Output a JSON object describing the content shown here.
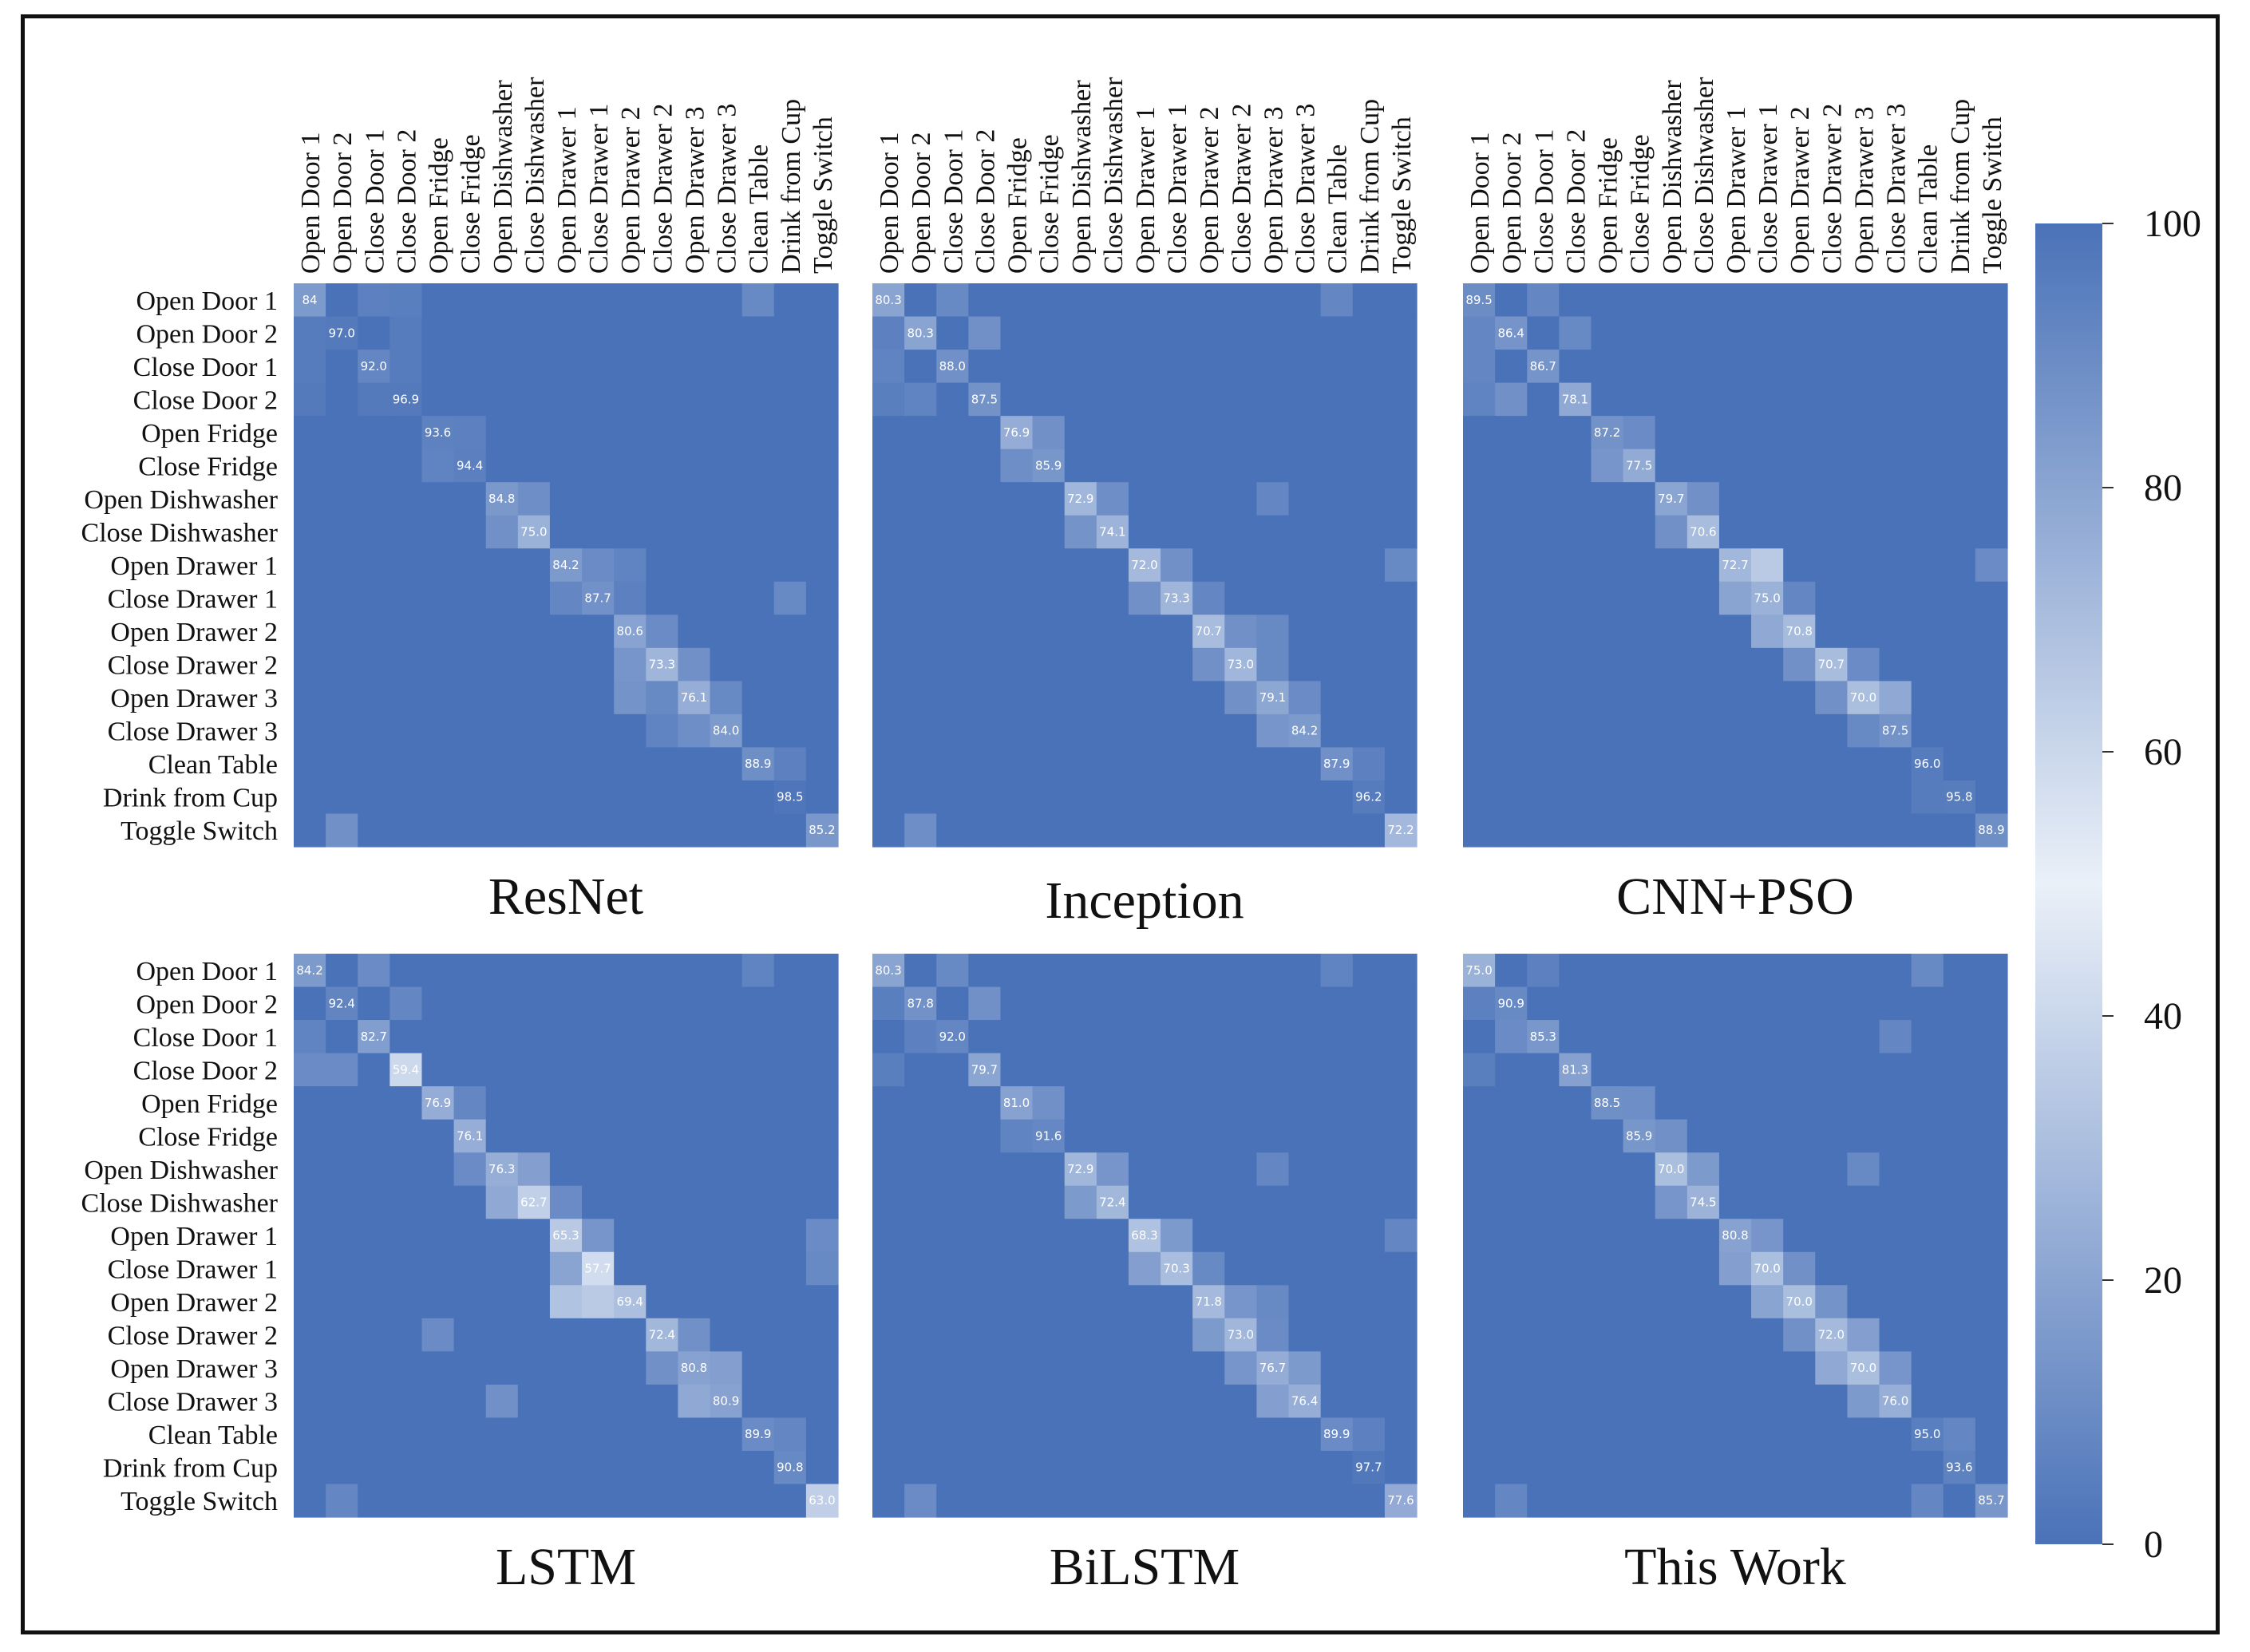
{
  "chart_data": {
    "type": "heatmap",
    "labels": [
      "Open Door 1",
      "Open Door 2",
      "Close Door 1",
      "Close Door 2",
      "Open Fridge",
      "Close Fridge",
      "Open Dishwasher",
      "Close Dishwasher",
      "Open Drawer 1",
      "Close Drawer 1",
      "Open Drawer 2",
      "Close Drawer 2",
      "Open Drawer 3",
      "Close Drawer 3",
      "Clean Table",
      "Drink from Cup",
      "Toggle Switch"
    ],
    "colorbar": {
      "range": [
        0,
        100
      ],
      "ticks": [
        "0",
        "20",
        "40",
        "60",
        "80",
        "100"
      ],
      "low_color": "#4a72b8",
      "high_color": "#eaf0f8"
    },
    "panels": [
      {
        "title": "ResNet",
        "diagonal": [
          84,
          97.0,
          92.0,
          96.9,
          93.6,
          94.4,
          84.8,
          75.0,
          84.2,
          87.7,
          80.6,
          73.3,
          76.1,
          84.0,
          88.9,
          98.5,
          85.2
        ],
        "diagonal_labels": [
          "84",
          "97.0",
          "92.0",
          "96.9",
          "93.6",
          "94.4",
          "84.8",
          "75.0",
          "84.2",
          "87.7",
          "80.6",
          "73.3",
          "76.1",
          "84.0",
          "88.9",
          "98.5",
          "85.2"
        ],
        "off_diagonal": [
          [
            0,
            2,
            6
          ],
          [
            0,
            3,
            5
          ],
          [
            0,
            14,
            9
          ],
          [
            1,
            0,
            4
          ],
          [
            1,
            3,
            4
          ],
          [
            2,
            0,
            4
          ],
          [
            2,
            3,
            4
          ],
          [
            3,
            0,
            3
          ],
          [
            3,
            2,
            3
          ],
          [
            4,
            5,
            6
          ],
          [
            5,
            4,
            7
          ],
          [
            6,
            7,
            11
          ],
          [
            7,
            6,
            12
          ],
          [
            8,
            9,
            10
          ],
          [
            8,
            10,
            7
          ],
          [
            9,
            8,
            8
          ],
          [
            9,
            10,
            6
          ],
          [
            9,
            15,
            9
          ],
          [
            10,
            11,
            10
          ],
          [
            11,
            10,
            14
          ],
          [
            11,
            12,
            12
          ],
          [
            12,
            10,
            13
          ],
          [
            12,
            11,
            9
          ],
          [
            12,
            13,
            9
          ],
          [
            13,
            12,
            11
          ],
          [
            13,
            11,
            7
          ],
          [
            14,
            15,
            6
          ],
          [
            16,
            1,
            12
          ]
        ]
      },
      {
        "title": "Inception",
        "diagonal": [
          80.3,
          80.3,
          88.0,
          87.5,
          76.9,
          85.9,
          72.9,
          74.1,
          72.0,
          73.3,
          70.7,
          73.0,
          79.1,
          84.2,
          87.9,
          96.2,
          72.2
        ],
        "diagonal_labels": [
          "80.3",
          "80.3",
          "88.0",
          "87.5",
          "76.9",
          "85.9",
          "72.9",
          "74.1",
          "72.0",
          "73.3",
          "70.7",
          "73.0",
          "79.1",
          "84.2",
          "87.9",
          "96.2",
          "72.2"
        ],
        "off_diagonal": [
          [
            0,
            2,
            9
          ],
          [
            0,
            14,
            8
          ],
          [
            1,
            3,
            12
          ],
          [
            1,
            0,
            6
          ],
          [
            2,
            0,
            7
          ],
          [
            3,
            1,
            7
          ],
          [
            3,
            0,
            5
          ],
          [
            4,
            5,
            12
          ],
          [
            5,
            4,
            11
          ],
          [
            6,
            7,
            11
          ],
          [
            6,
            12,
            8
          ],
          [
            7,
            6,
            13
          ],
          [
            8,
            9,
            12
          ],
          [
            8,
            16,
            9
          ],
          [
            9,
            8,
            12
          ],
          [
            9,
            10,
            8
          ],
          [
            10,
            11,
            12
          ],
          [
            10,
            12,
            9
          ],
          [
            11,
            10,
            12
          ],
          [
            11,
            12,
            9
          ],
          [
            12,
            11,
            12
          ],
          [
            12,
            13,
            10
          ],
          [
            13,
            12,
            14
          ],
          [
            14,
            15,
            6
          ],
          [
            16,
            1,
            11
          ]
        ]
      },
      {
        "title": "CNN+PSO",
        "diagonal": [
          89.5,
          86.4,
          86.7,
          78.1,
          87.2,
          77.5,
          79.7,
          70.6,
          72.7,
          75.0,
          70.8,
          70.7,
          70.0,
          87.5,
          96.0,
          95.8,
          88.9
        ],
        "diagonal_labels": [
          "89.5",
          "86.4",
          "86.7",
          "78.1",
          "87.2",
          "77.5",
          "79.7",
          "70.6",
          "72.7",
          "75.0",
          "70.8",
          "70.7",
          "70.0",
          "87.5",
          "96.0",
          "95.8",
          "88.9"
        ],
        "off_diagonal": [
          [
            0,
            2,
            8
          ],
          [
            1,
            3,
            9
          ],
          [
            1,
            0,
            8
          ],
          [
            2,
            0,
            8
          ],
          [
            3,
            1,
            12
          ],
          [
            3,
            0,
            7
          ],
          [
            4,
            5,
            10
          ],
          [
            5,
            4,
            14
          ],
          [
            6,
            7,
            12
          ],
          [
            7,
            6,
            12
          ],
          [
            8,
            9,
            35
          ],
          [
            8,
            16,
            10
          ],
          [
            9,
            8,
            20
          ],
          [
            9,
            10,
            8
          ],
          [
            10,
            9,
            22
          ],
          [
            11,
            10,
            12
          ],
          [
            11,
            12,
            10
          ],
          [
            12,
            13,
            22
          ],
          [
            12,
            11,
            12
          ],
          [
            13,
            12,
            9
          ],
          [
            15,
            14,
            4
          ]
        ]
      },
      {
        "title": "LSTM",
        "diagonal": [
          84.2,
          92.4,
          82.7,
          59.4,
          76.9,
          76.1,
          76.3,
          62.7,
          65.3,
          57.7,
          69.4,
          72.4,
          80.8,
          80.9,
          89.9,
          90.8,
          63.0
        ],
        "diagonal_labels": [
          "84.2",
          "92.4",
          "82.7",
          "59.4",
          "76.9",
          "76.1",
          "76.3",
          "62.7",
          "65.3",
          "57.7",
          "69.4",
          "72.4",
          "80.8",
          "80.9",
          "89.9",
          "90.8",
          "63.0"
        ],
        "off_diagonal": [
          [
            0,
            2,
            10
          ],
          [
            0,
            14,
            7
          ],
          [
            1,
            3,
            8
          ],
          [
            2,
            0,
            7
          ],
          [
            3,
            0,
            10
          ],
          [
            3,
            1,
            10
          ],
          [
            4,
            5,
            8
          ],
          [
            6,
            7,
            18
          ],
          [
            6,
            5,
            10
          ],
          [
            7,
            6,
            22
          ],
          [
            7,
            8,
            10
          ],
          [
            8,
            9,
            14
          ],
          [
            8,
            16,
            10
          ],
          [
            9,
            8,
            20
          ],
          [
            9,
            16,
            9
          ],
          [
            10,
            8,
            32
          ],
          [
            10,
            9,
            35
          ],
          [
            11,
            12,
            12
          ],
          [
            11,
            4,
            10
          ],
          [
            12,
            13,
            18
          ],
          [
            12,
            11,
            12
          ],
          [
            13,
            12,
            22
          ],
          [
            13,
            6,
            12
          ],
          [
            14,
            15,
            8
          ],
          [
            16,
            1,
            8
          ]
        ]
      },
      {
        "title": "BiLSTM",
        "diagonal": [
          80.3,
          87.8,
          92.0,
          79.7,
          81.0,
          91.6,
          72.9,
          72.4,
          68.3,
          70.3,
          71.8,
          73.0,
          76.7,
          76.4,
          89.9,
          97.7,
          77.6
        ],
        "diagonal_labels": [
          "80.3",
          "87.8",
          "92.0",
          "79.7",
          "81.0",
          "91.6",
          "72.9",
          "72.4",
          "68.3",
          "70.3",
          "71.8",
          "73.0",
          "76.7",
          "76.4",
          "89.9",
          "97.7",
          "77.6"
        ],
        "off_diagonal": [
          [
            0,
            2,
            9
          ],
          [
            0,
            14,
            7
          ],
          [
            1,
            3,
            12
          ],
          [
            1,
            0,
            5
          ],
          [
            2,
            1,
            6
          ],
          [
            3,
            0,
            5
          ],
          [
            4,
            5,
            12
          ],
          [
            5,
            4,
            7
          ],
          [
            6,
            7,
            14
          ],
          [
            6,
            12,
            8
          ],
          [
            7,
            6,
            16
          ],
          [
            8,
            9,
            16
          ],
          [
            8,
            16,
            8
          ],
          [
            9,
            8,
            18
          ],
          [
            9,
            10,
            9
          ],
          [
            10,
            11,
            14
          ],
          [
            10,
            12,
            9
          ],
          [
            11,
            10,
            16
          ],
          [
            11,
            12,
            10
          ],
          [
            12,
            11,
            14
          ],
          [
            12,
            13,
            16
          ],
          [
            13,
            12,
            18
          ],
          [
            14,
            15,
            6
          ],
          [
            16,
            1,
            10
          ]
        ]
      },
      {
        "title": "This Work",
        "diagonal": [
          75.0,
          90.9,
          85.3,
          81.3,
          88.5,
          85.9,
          70.0,
          74.5,
          80.8,
          70.0,
          70.0,
          72.0,
          70.0,
          76.0,
          95.0,
          93.6,
          85.7
        ],
        "diagonal_labels": [
          "75.0",
          "90.9",
          "85.3",
          "81.3",
          "88.5",
          "85.9",
          "70.0",
          "74.5",
          "80.8",
          "70.0",
          "70.0",
          "72.0",
          "70.0",
          "76.0",
          "95.0",
          "93.6",
          "85.7"
        ],
        "off_diagonal": [
          [
            0,
            14,
            9
          ],
          [
            0,
            2,
            6
          ],
          [
            1,
            0,
            6
          ],
          [
            2,
            1,
            10
          ],
          [
            2,
            13,
            8
          ],
          [
            3,
            0,
            5
          ],
          [
            4,
            5,
            11
          ],
          [
            5,
            6,
            12
          ],
          [
            6,
            7,
            16
          ],
          [
            6,
            12,
            9
          ],
          [
            7,
            6,
            14
          ],
          [
            8,
            9,
            14
          ],
          [
            9,
            8,
            18
          ],
          [
            9,
            10,
            12
          ],
          [
            10,
            9,
            20
          ],
          [
            10,
            11,
            13
          ],
          [
            11,
            12,
            18
          ],
          [
            11,
            10,
            12
          ],
          [
            12,
            11,
            22
          ],
          [
            12,
            13,
            14
          ],
          [
            13,
            12,
            16
          ],
          [
            14,
            15,
            8
          ],
          [
            16,
            14,
            8
          ],
          [
            16,
            1,
            8
          ]
        ]
      }
    ]
  }
}
